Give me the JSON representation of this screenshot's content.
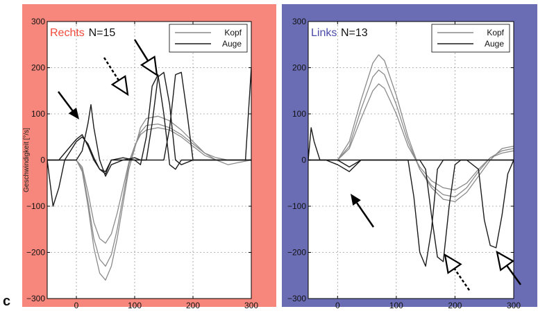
{
  "figure": {
    "panel_label": "c"
  },
  "colors": {
    "left_panel_bg": "#f7877c",
    "right_panel_bg": "#6a6db3",
    "kopf_line": "#8a8a8a",
    "auge_line": "#1a1a1a",
    "title_right_word": "#f04a3a",
    "title_left_word": "#4a4aa8"
  },
  "chart_data": [
    {
      "type": "line",
      "title_word": "Rechts",
      "title_n": "N=15",
      "ylabel": "Geschwindigkeit [°/s]",
      "xlim": [
        -50,
        300
      ],
      "ylim": [
        -300,
        300
      ],
      "xticks": [
        0,
        100,
        200,
        300
      ],
      "yticks": [
        -300,
        -200,
        -100,
        0,
        100,
        200,
        300
      ],
      "xtick_labels": [
        "0",
        "100",
        "200",
        "300"
      ],
      "ytick_labels": [
        "−300",
        "−200",
        "−100",
        "0",
        "100",
        "200",
        "300"
      ],
      "grid": true,
      "legend": {
        "placement": "top-right",
        "entries": [
          "Kopf",
          "Auge"
        ]
      },
      "series": [
        {
          "name": "Kopf",
          "x": [
            -50,
            0,
            10,
            20,
            30,
            40,
            50,
            60,
            70,
            80,
            90,
            100,
            110,
            120,
            140,
            160,
            180,
            200,
            220,
            240,
            260,
            280,
            300
          ],
          "values": [
            0,
            0,
            -20,
            -90,
            -170,
            -215,
            -230,
            -205,
            -150,
            -80,
            -10,
            30,
            60,
            75,
            78,
            70,
            55,
            35,
            15,
            5,
            0,
            0,
            0
          ]
        },
        {
          "name": "Kopf",
          "x": [
            -50,
            0,
            10,
            20,
            30,
            40,
            50,
            60,
            70,
            80,
            90,
            100,
            110,
            120,
            140,
            160,
            180,
            200,
            220,
            240,
            260,
            280,
            300
          ],
          "values": [
            0,
            0,
            -25,
            -100,
            -190,
            -245,
            -260,
            -230,
            -170,
            -95,
            -20,
            25,
            70,
            90,
            95,
            85,
            65,
            40,
            15,
            0,
            -10,
            -5,
            0
          ]
        },
        {
          "name": "Kopf",
          "x": [
            -50,
            0,
            10,
            20,
            30,
            40,
            50,
            60,
            70,
            80,
            90,
            100,
            110,
            120,
            140,
            160,
            180,
            200,
            220,
            240,
            260,
            280,
            300
          ],
          "values": [
            0,
            0,
            -15,
            -70,
            -135,
            -170,
            -180,
            -160,
            -115,
            -60,
            -5,
            30,
            55,
            65,
            70,
            65,
            50,
            30,
            10,
            0,
            0,
            0,
            0
          ]
        },
        {
          "name": "Auge",
          "x": [
            -50,
            -30,
            -10,
            0,
            10,
            20,
            30,
            40,
            50,
            60,
            80,
            100,
            110,
            120,
            130,
            140,
            150,
            160,
            170,
            180,
            200,
            250,
            300
          ],
          "values": [
            0,
            0,
            30,
            45,
            55,
            30,
            0,
            -20,
            -30,
            0,
            5,
            0,
            -10,
            50,
            160,
            185,
            100,
            -10,
            -20,
            0,
            0,
            0,
            0
          ]
        },
        {
          "name": "Auge",
          "x": [
            -50,
            -40,
            -30,
            -20,
            -10,
            0,
            10,
            20,
            30,
            40,
            50,
            60,
            80,
            100,
            120,
            150,
            160,
            170,
            180,
            190,
            200,
            250,
            300
          ],
          "values": [
            0,
            -100,
            -60,
            0,
            20,
            40,
            50,
            35,
            5,
            -20,
            -25,
            0,
            0,
            0,
            0,
            0,
            70,
            185,
            190,
            100,
            0,
            0,
            0
          ]
        },
        {
          "name": "Auge",
          "x": [
            -50,
            0,
            10,
            20,
            25,
            30,
            40,
            50,
            60,
            80,
            100,
            110,
            120,
            130,
            140,
            150,
            160,
            170,
            180,
            200,
            250,
            290,
            300
          ],
          "values": [
            0,
            0,
            20,
            80,
            120,
            70,
            0,
            -35,
            -10,
            0,
            5,
            0,
            0,
            80,
            180,
            190,
            120,
            0,
            -10,
            0,
            0,
            0,
            200
          ]
        }
      ]
    },
    {
      "type": "line",
      "title_word": "Links",
      "title_n": "N=13",
      "ylabel": "",
      "xlim": [
        -50,
        300
      ],
      "ylim": [
        -300,
        300
      ],
      "xticks": [
        0,
        100,
        200,
        300
      ],
      "yticks": [
        -300,
        -200,
        -100,
        0,
        100,
        200,
        300
      ],
      "xtick_labels": [
        "0",
        "100",
        "200",
        "300"
      ],
      "ytick_labels": [
        "−300",
        "−200",
        "−100",
        "0",
        "100",
        "200",
        "300"
      ],
      "grid": true,
      "legend": {
        "placement": "top-right",
        "entries": [
          "Kopf",
          "Auge"
        ]
      },
      "series": [
        {
          "name": "Kopf",
          "x": [
            -50,
            0,
            20,
            40,
            60,
            70,
            80,
            100,
            120,
            140,
            160,
            180,
            200,
            220,
            240,
            260,
            280,
            300
          ],
          "values": [
            0,
            0,
            40,
            130,
            210,
            228,
            215,
            140,
            50,
            -20,
            -60,
            -85,
            -90,
            -70,
            -35,
            0,
            25,
            30
          ]
        },
        {
          "name": "Kopf",
          "x": [
            -50,
            0,
            20,
            40,
            60,
            70,
            80,
            100,
            120,
            140,
            160,
            180,
            200,
            220,
            240,
            260,
            280,
            300
          ],
          "values": [
            0,
            0,
            30,
            110,
            180,
            195,
            185,
            120,
            40,
            -20,
            -55,
            -75,
            -80,
            -60,
            -25,
            5,
            20,
            25
          ]
        },
        {
          "name": "Kopf",
          "x": [
            -50,
            0,
            20,
            40,
            60,
            70,
            80,
            100,
            120,
            140,
            160,
            180,
            200,
            220,
            240,
            260,
            280,
            300
          ],
          "values": [
            0,
            0,
            25,
            90,
            150,
            165,
            155,
            100,
            30,
            -15,
            -45,
            -60,
            -65,
            -50,
            -20,
            5,
            15,
            20
          ]
        },
        {
          "name": "Auge",
          "x": [
            -50,
            -45,
            -40,
            -30,
            -20,
            0,
            20,
            40,
            80,
            100,
            120,
            130,
            140,
            150,
            160,
            170,
            180,
            190,
            200,
            250,
            300
          ],
          "values": [
            0,
            70,
            40,
            0,
            0,
            -10,
            -25,
            0,
            0,
            0,
            0,
            -80,
            -200,
            -230,
            -150,
            -20,
            0,
            0,
            0,
            0,
            0
          ]
        },
        {
          "name": "Auge",
          "x": [
            -50,
            0,
            20,
            40,
            80,
            120,
            140,
            150,
            160,
            170,
            180,
            190,
            200,
            210,
            220,
            250,
            300
          ],
          "values": [
            0,
            0,
            -15,
            0,
            0,
            0,
            0,
            -20,
            -120,
            -210,
            -220,
            -100,
            -10,
            0,
            0,
            0,
            0
          ]
        },
        {
          "name": "Auge",
          "x": [
            -50,
            0,
            40,
            80,
            120,
            160,
            200,
            220,
            240,
            250,
            260,
            270,
            280,
            290,
            300
          ],
          "values": [
            0,
            0,
            0,
            0,
            0,
            0,
            0,
            0,
            -20,
            -130,
            -185,
            -190,
            -120,
            -30,
            0
          ]
        }
      ]
    }
  ]
}
